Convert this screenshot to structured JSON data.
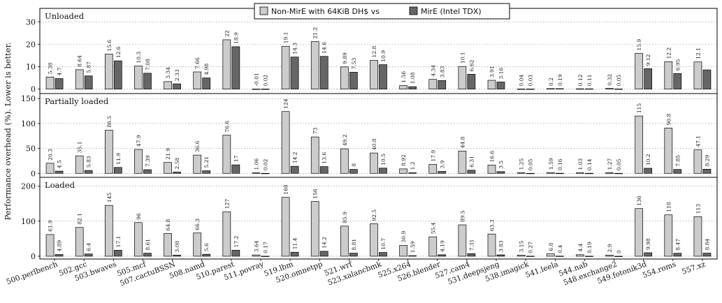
{
  "chart_data": {
    "type": "bar",
    "ylabel": "Performance overhead (%). Lower is better.",
    "legend": {
      "placement": "top-center",
      "entries": [
        {
          "name": "Non-MirE with 64KiB DH$ vs",
          "color": "#cccccc"
        },
        {
          "name": "MirE (Intel TDX)",
          "color": "#666666"
        }
      ]
    },
    "categories": [
      "500.perlbench",
      "502.gcc",
      "503.bwaves",
      "505.mcf",
      "507.cactuBSSN",
      "508.namd",
      "510.parest",
      "511.povray",
      "519.lbm",
      "520.omnetpp",
      "521.wrf",
      "523.xalancbmk",
      "525.x264",
      "526.blender",
      "527.cam4",
      "531.deepsjeng",
      "538.imagick",
      "541.leela",
      "544.nab",
      "548.exchange2",
      "549.fotonik3d",
      "554.roms",
      "557.xz"
    ],
    "panels": [
      {
        "title": "Unloaded",
        "ylim": [
          -2,
          36
        ],
        "yticks": [
          0,
          10,
          20,
          30
        ],
        "series": [
          {
            "name": "Non-MirE with 64KiB DH$ vs",
            "values": [
              5.38,
              8.64,
              15.6,
              10.3,
              3.34,
              7.66,
              22,
              -0.01,
              19.1,
              21.2,
              9.89,
              12.8,
              1.56,
              4.34,
              10.1,
              3.91,
              0.04,
              0.2,
              0.12,
              0.32,
              15.9,
              12.2,
              12.1
            ],
            "labels": [
              "5.38",
              "8.64",
              "15.6",
              "10.3",
              "3.34",
              "7.66",
              "22",
              "-0.01",
              "19.1",
              "21.2",
              "9.89",
              "12.8",
              "1.56",
              "4.34",
              "10.1",
              "3.91",
              "0.04",
              "0.2",
              "0.12",
              "0.32",
              "15.9",
              "12.2",
              "12.1"
            ]
          },
          {
            "name": "MirE (Intel TDX)",
            "values": [
              4.7,
              5.87,
              12.6,
              7.08,
              2.33,
              4.98,
              18.9,
              0.02,
              14.3,
              14.6,
              7.53,
              10.9,
              1.08,
              3.83,
              6.62,
              3.16,
              0.03,
              0.19,
              0.11,
              0.05,
              9.12,
              6.95,
              8.56
            ],
            "labels": [
              "4.7",
              "5.87",
              "12.6",
              "7.08",
              "2.33",
              "4.98",
              "18.9",
              "0.02",
              "14.3",
              "14.6",
              "7.53",
              "10.9",
              "1.08",
              "3.83",
              "6.62",
              "3.16",
              "0.03",
              "0.19",
              "0.11",
              "0.05",
              "9.12",
              "6.95",
              ""
            ]
          }
        ]
      },
      {
        "title": "Partially loaded",
        "ylim": [
          -8,
          160
        ],
        "yticks": [
          0,
          50,
          100,
          150
        ],
        "series": [
          {
            "name": "Non-MirE with 64KiB DH$ vs",
            "values": [
              20.3,
              35.1,
              86.5,
              47.9,
              21.9,
              36.6,
              76.6,
              1.06,
              124,
              73,
              49.2,
              40.8,
              8.92,
              17.9,
              44.8,
              16.6,
              1.25,
              1.59,
              1.03,
              1.27,
              115,
              90.8,
              47.1
            ],
            "labels": [
              "20.3",
              "35.1",
              "86.5",
              "47.9",
              "21.9",
              "36.6",
              "76.6",
              "1.06",
              "124",
              "73",
              "49.2",
              "40.8",
              "8.92",
              "17.9",
              "44.8",
              "16.6",
              "1.25",
              "1.59",
              "1.03",
              "1.27",
              "115",
              "90.8",
              "47.1"
            ]
          },
          {
            "name": "MirE (Intel TDX)",
            "values": [
              4.5,
              5.83,
              11.9,
              7.39,
              2.58,
              5.21,
              17,
              0.02,
              14.2,
              13.6,
              8,
              10.5,
              1.2,
              3.9,
              6.31,
              3.5,
              0.05,
              0.16,
              0.14,
              0.05,
              10.2,
              7.85,
              8.29
            ],
            "labels": [
              "4.5",
              "5.83",
              "11.9",
              "7.39",
              "2.58",
              "5.21",
              "17",
              "0.02",
              "14.2",
              "13.6",
              "8",
              "10.5",
              "1.2",
              "3.9",
              "6.31",
              "3.5",
              "0.05",
              "0.16",
              "0.14",
              "0.05",
              "10.2",
              "7.85",
              "8.29"
            ]
          }
        ]
      },
      {
        "title": "Loaded",
        "ylim": [
          -8,
          225
        ],
        "yticks": [
          0,
          100,
          200
        ],
        "series": [
          {
            "name": "Non-MirE with 64KiB DH$ vs",
            "values": [
              61.9,
              82.1,
              145,
              96,
              64.8,
              66.3,
              127,
              3.64,
              168,
              156,
              85.9,
              92.5,
              30.9,
              55.4,
              89.5,
              63.3,
              3.15,
              6.8,
              4.4,
              2.9,
              136,
              118,
              113
            ],
            "labels": [
              "61.9",
              "82.1",
              "145",
              "96",
              "64.8",
              "66.3",
              "127",
              "3.64",
              "168",
              "156",
              "85.9",
              "92.5",
              "30.9",
              "55.4",
              "89.5",
              "63.3",
              "3.15",
              "6.8",
              "4.4",
              "2.9",
              "136",
              "118",
              "113"
            ]
          },
          {
            "name": "MirE (Intel TDX)",
            "values": [
              4.89,
              6.4,
              17.1,
              8.61,
              3.08,
              5.6,
              17.2,
              0.17,
              11.4,
              14.2,
              8.81,
              10.7,
              1.59,
              4.19,
              7.31,
              3.83,
              0.27,
              0.4,
              0.19,
              0,
              9.98,
              8.47,
              8.84
            ],
            "labels": [
              "4.89",
              "6.4",
              "17.1",
              "8.61",
              "3.08",
              "5.6",
              "17.2",
              "0.17",
              "11.4",
              "14.2",
              "8.81",
              "10.7",
              "1.59",
              "4.19",
              "7.31",
              "3.83",
              "0.27",
              "0.4",
              "0.19",
              "0",
              "9.98",
              "8.47",
              "8.84"
            ]
          }
        ]
      }
    ],
    "grid": true
  }
}
